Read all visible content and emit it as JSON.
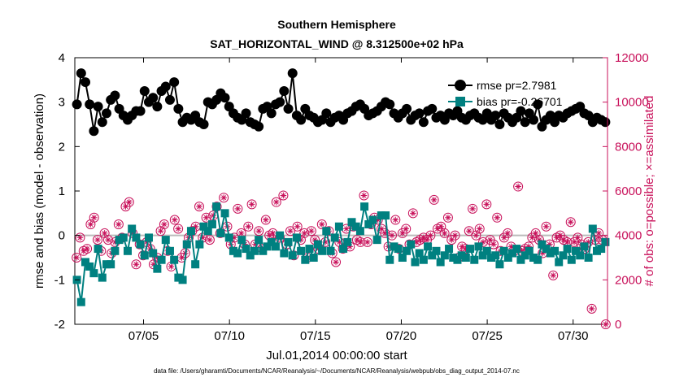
{
  "chart_data": {
    "type": "line",
    "title": "Southern Hemisphere",
    "subtitle": "SAT_HORIZONTAL_WIND @ 8.312500e+02 hPa",
    "xlabel": "Jul.01,2014 00:00:00 start",
    "ylabel_left": "rmse and bias (model - observation)",
    "ylabel_right": "# of obs: o=possible; ×=assimilated",
    "footnote": "data file: /Users/gharamti/Documents/NCAR/Reanalysis/~/Documents/NCAR/Reanalysis/webpub/obs_diag_output_2014-07.nc",
    "x_ticks": [
      {
        "label": "07/05",
        "day": 5
      },
      {
        "label": "07/10",
        "day": 10
      },
      {
        "label": "07/15",
        "day": 15
      },
      {
        "label": "07/20",
        "day": 20
      },
      {
        "label": "07/25",
        "day": 25
      },
      {
        "label": "07/30",
        "day": 30
      }
    ],
    "xlim": [
      1,
      32
    ],
    "ylim_left": [
      -2,
      4
    ],
    "ylim_right": [
      0,
      12000
    ],
    "y_ticks_left": [
      "-2",
      "-1",
      "0",
      "1",
      "2",
      "3",
      "4"
    ],
    "y_ticks_right": [
      "0",
      "2000",
      "4000",
      "6000",
      "8000",
      "10000",
      "12000"
    ],
    "zero_line": true,
    "grid": false,
    "legend_position": "top-right",
    "colors": {
      "rmse": "#000000",
      "bias": "#008080",
      "obs": "#c8105a",
      "zero": "#bbbbbb",
      "right_axis": "#c8105a"
    },
    "series": [
      {
        "name": "rmse pr=2.7981",
        "marker": "circle",
        "values": [
          2.95,
          3.65,
          3.45,
          2.95,
          2.35,
          2.9,
          2.55,
          2.75,
          3.05,
          3.15,
          2.85,
          2.7,
          2.6,
          2.7,
          2.8,
          2.8,
          3.25,
          3.0,
          3.1,
          2.9,
          3.25,
          3.35,
          3.05,
          3.45,
          2.85,
          2.55,
          2.65,
          2.6,
          2.7,
          2.55,
          2.5,
          3.0,
          2.95,
          3.05,
          3.2,
          3.1,
          2.9,
          2.75,
          2.65,
          2.6,
          2.75,
          2.55,
          2.5,
          2.45,
          2.85,
          2.9,
          2.75,
          2.95,
          3.0,
          3.25,
          2.85,
          3.65,
          2.7,
          2.6,
          2.85,
          2.7,
          2.65,
          2.55,
          2.6,
          2.75,
          2.55,
          2.65,
          2.7,
          2.6,
          2.75,
          2.8,
          2.9,
          2.95,
          2.85,
          2.7,
          2.75,
          2.8,
          2.9,
          3.0,
          2.95,
          2.75,
          2.65,
          2.75,
          2.85,
          2.6,
          2.7,
          2.75,
          2.55,
          2.8,
          2.85,
          2.65,
          2.7,
          2.6,
          2.75,
          2.7,
          2.8,
          2.65,
          2.6,
          2.7,
          2.75,
          2.65,
          2.6,
          2.75,
          2.6,
          2.7,
          2.5,
          2.75,
          2.65,
          2.55,
          2.65,
          2.8,
          2.55,
          2.75,
          2.6,
          2.95,
          2.45,
          2.6,
          2.7,
          2.55,
          2.7,
          2.65,
          2.75,
          2.8,
          2.85,
          2.9,
          2.75,
          2.7,
          2.55,
          2.65,
          2.6,
          2.55
        ]
      },
      {
        "name": "bias pr=-0.26701",
        "marker": "square",
        "values": [
          -1.0,
          -1.5,
          -0.6,
          -0.7,
          -0.85,
          -0.3,
          -0.95,
          -0.65,
          -0.65,
          -0.35,
          -0.1,
          -0.05,
          -0.35,
          0.15,
          -0.05,
          -0.2,
          -0.45,
          -0.05,
          -0.4,
          -0.75,
          -0.55,
          -0.1,
          -0.35,
          -0.55,
          -0.95,
          -1.0,
          -0.2,
          0.1,
          -0.65,
          -0.2,
          0.2,
          0.1,
          0.25,
          0.65,
          0.05,
          0.5,
          -0.05,
          -0.35,
          -0.4,
          -0.1,
          -0.3,
          -0.45,
          -0.35,
          -0.1,
          -0.35,
          -0.25,
          -0.15,
          -0.25,
          0.0,
          -0.4,
          -0.15,
          -0.45,
          -0.05,
          -0.35,
          -0.55,
          -0.3,
          -0.5,
          -0.2,
          -0.35,
          0.1,
          -0.35,
          -0.05,
          0.2,
          -0.3,
          -0.15,
          0.3,
          0.2,
          0.1,
          0.65,
          0.25,
          0.35,
          -0.1,
          0.45,
          0.45,
          -0.55,
          -0.25,
          -0.3,
          -0.5,
          -0.35,
          -0.2,
          -0.6,
          -0.4,
          -0.55,
          -0.25,
          -0.45,
          -0.35,
          -0.6,
          -0.45,
          -0.3,
          -0.5,
          -0.55,
          -0.45,
          -0.5,
          -0.3,
          -0.55,
          -0.25,
          -0.45,
          -0.35,
          -0.5,
          -0.45,
          -0.65,
          -0.35,
          -0.5,
          -0.4,
          -0.3,
          -0.55,
          -0.45,
          -0.35,
          -0.5,
          -0.55,
          -0.2,
          -0.3,
          -0.4,
          -0.35,
          -0.6,
          -0.45,
          -0.3,
          -0.55,
          -0.35,
          -0.45,
          -0.25,
          -0.5,
          0.15,
          -0.35,
          -0.3,
          -0.15
        ]
      },
      {
        "name": "obs possible",
        "marker": "circle-open",
        "values": [
          3000,
          3900,
          3300,
          3400,
          4500,
          4800,
          3800,
          3300,
          4100,
          3800,
          3200,
          3700,
          4500,
          3900,
          5300,
          5500,
          4100,
          2700,
          3600,
          3100,
          3700,
          3400,
          2700,
          3000,
          4200,
          4500,
          3300,
          2600,
          4700,
          4300,
          3000,
          3200,
          3900,
          4200,
          4400,
          5300,
          3900,
          4800,
          3800,
          4900,
          5300,
          4100,
          5700,
          4400,
          3600,
          3900,
          5200,
          4100,
          3600,
          4400,
          5400,
          3600,
          4200,
          3400,
          4700,
          4000,
          4100,
          5500,
          3900,
          5800,
          3600,
          4200,
          3100,
          4400,
          3800,
          4100,
          3000,
          4200,
          3800,
          3400,
          4500,
          3700,
          4200,
          3200,
          2800,
          3700,
          3400,
          4300,
          3500,
          4400,
          3800,
          3700,
          5800,
          3700,
          4500,
          4800,
          4700,
          4300,
          4100,
          3500,
          4000,
          4700,
          3400,
          4100,
          4300,
          3600,
          5000,
          3700,
          3800,
          3900,
          3800,
          4000,
          5600,
          4300,
          4400,
          4100,
          4800,
          3800,
          4000,
          3000,
          3500,
          3400,
          4200,
          5200,
          4000,
          4300,
          3700,
          5400,
          3800,
          3600,
          4800,
          3300,
          3900,
          4100,
          3500,
          3300,
          6200,
          3300,
          3400,
          3500,
          3900,
          4100,
          3800,
          3200,
          4400,
          3600,
          2200,
          3900,
          4000,
          3800,
          3700,
          4600,
          3700,
          3900,
          3600,
          3400,
          3700,
          700,
          3800,
          4100,
          3800,
          0
        ]
      }
    ]
  }
}
